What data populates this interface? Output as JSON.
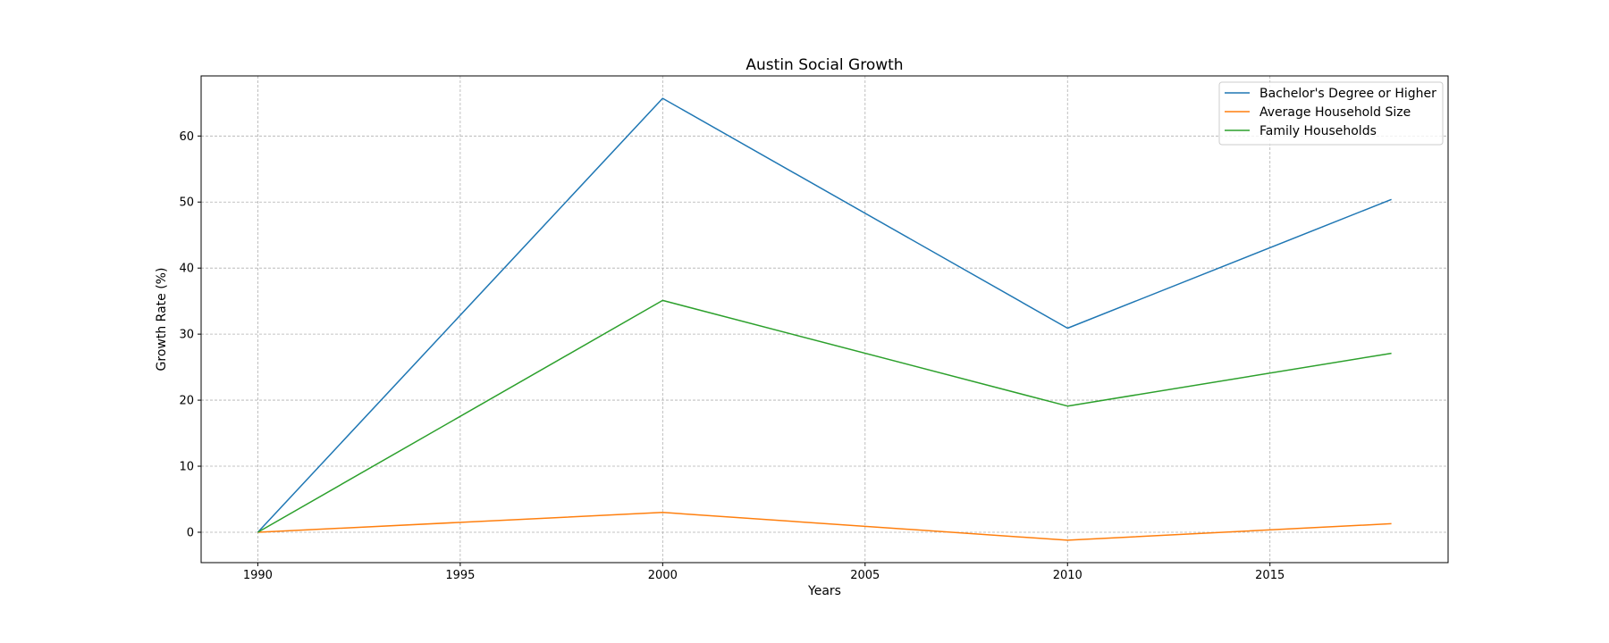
{
  "chart_data": {
    "type": "line",
    "title": "Austin Social Growth",
    "xlabel": "Years",
    "ylabel": "Growth Rate (%)",
    "x": [
      1990,
      2000,
      2010,
      2018
    ],
    "xlim": [
      1988.6,
      2019.4
    ],
    "ylim": [
      -4.6,
      69.1
    ],
    "xticks": [
      1990,
      1995,
      2000,
      2005,
      2010,
      2015
    ],
    "yticks": [
      0,
      10,
      20,
      30,
      40,
      50,
      60
    ],
    "grid": true,
    "legend_position": "top-right",
    "series": [
      {
        "name": "Bachelor's Degree or Higher",
        "color": "#1f77b4",
        "values": [
          0,
          65.7,
          30.9,
          50.4
        ]
      },
      {
        "name": "Average Household Size",
        "color": "#ff7f0e",
        "values": [
          0,
          3.0,
          -1.2,
          1.3
        ]
      },
      {
        "name": "Family Households",
        "color": "#2ca02c",
        "values": [
          0,
          35.1,
          19.1,
          27.1
        ]
      }
    ]
  }
}
